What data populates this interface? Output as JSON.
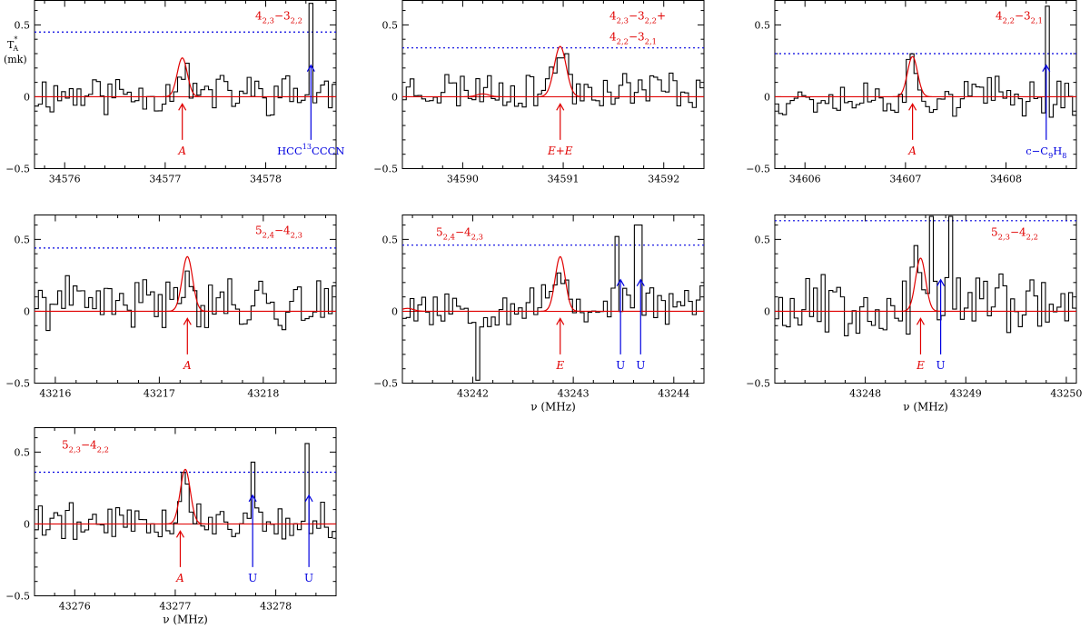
{
  "figure": {
    "ylabel_T": "T",
    "ylabel_star": "*",
    "ylabel_A": "A",
    "ylabel_unit": "(mk)",
    "xlabel": "ν (MHz)"
  },
  "colors": {
    "spectrum": "#000000",
    "model": "#e00000",
    "line_label": "#e00000",
    "other_label": "#0000e0",
    "noise": "#0000e0"
  },
  "chart_data": [
    {
      "type": "line",
      "panel": 1,
      "title": "4 2,3 − 3 2,2",
      "title_parts": [
        {
          "t": "4"
        },
        {
          "t": "2,3",
          "sub": true
        },
        {
          "t": "−3"
        },
        {
          "t": "2,2",
          "sub": true
        }
      ],
      "xlim": [
        34575.7,
        34578.7
      ],
      "ylim": [
        -0.5,
        0.67
      ],
      "xticks": [
        34576,
        34577,
        34578
      ],
      "xticklabels": [
        "34576",
        "34577",
        "34578"
      ],
      "yticks": [
        -0.5,
        0,
        0.5
      ],
      "yticklabels": [
        "−0.5",
        "0",
        "0.5"
      ],
      "xlabel": "",
      "noise_level": 0.45,
      "model": {
        "center": 34577.17,
        "amp": 0.27,
        "width": 0.05
      },
      "extra_models": [],
      "seed": 11,
      "amp": 0.13,
      "offset": 0.02,
      "spikes": [
        {
          "x": 34578.45,
          "y": 0.65
        }
      ],
      "arrows": [
        {
          "x": 34577.17,
          "color": "red",
          "label": "A",
          "italic": true,
          "y_top": -0.05
        },
        {
          "x": 34578.45,
          "color": "blue",
          "label": "",
          "y_top": 0.22,
          "rich": [
            {
              "t": "HCC"
            },
            {
              "t": "13",
              "sup": true
            },
            {
              "t": "CCCN"
            }
          ]
        }
      ]
    },
    {
      "type": "line",
      "panel": 2,
      "title": "4 2,3 − 3 2,2 + 4 2,2 − 3 2,1",
      "title_parts": [
        {
          "t": "4"
        },
        {
          "t": "2,3",
          "sub": true
        },
        {
          "t": "−3"
        },
        {
          "t": "2,2",
          "sub": true
        },
        {
          "t": "+"
        }
      ],
      "title_parts2": [
        {
          "t": "4"
        },
        {
          "t": "2,2",
          "sub": true
        },
        {
          "t": "−3"
        },
        {
          "t": "2,1",
          "sub": true
        }
      ],
      "xlim": [
        34589.4,
        34592.4
      ],
      "ylim": [
        -0.5,
        0.67
      ],
      "xticks": [
        34590,
        34591,
        34592
      ],
      "xticklabels": [
        "34590",
        "34591",
        "34592"
      ],
      "yticks": [
        -0.5,
        0,
        0.5
      ],
      "yticklabels": [
        "−0.5",
        "0",
        "0.5"
      ],
      "xlabel": "",
      "noise_level": 0.34,
      "model": {
        "center": 34590.97,
        "amp": 0.35,
        "width": 0.06
      },
      "extra_models": [
        {
          "center": 34590.2,
          "amp": 0.02,
          "width": 0.06
        }
      ],
      "seed": 23,
      "amp": 0.12,
      "offset": 0.05,
      "spikes": [],
      "arrows": [
        {
          "x": 34590.97,
          "color": "red",
          "label": "E+E",
          "italic": true,
          "y_top": -0.05
        }
      ]
    },
    {
      "type": "line",
      "panel": 3,
      "title": "4 2,2 − 3 2,1",
      "title_parts": [
        {
          "t": "4"
        },
        {
          "t": "2,2",
          "sub": true
        },
        {
          "t": "−3"
        },
        {
          "t": "2,1",
          "sub": true
        }
      ],
      "xlim": [
        34605.7,
        34608.7
      ],
      "ylim": [
        -0.5,
        0.67
      ],
      "xticks": [
        34606,
        34607,
        34608
      ],
      "xticklabels": [
        "34606",
        "34607",
        "34608"
      ],
      "yticks": [
        -0.5,
        0,
        0.5
      ],
      "yticklabels": [
        "−0.5",
        "0",
        "0.5"
      ],
      "xlabel": "",
      "noise_level": 0.3,
      "model": {
        "center": 34607.07,
        "amp": 0.28,
        "width": 0.05
      },
      "extra_models": [],
      "seed": 37,
      "amp": 0.12,
      "offset": 0.0,
      "spikes": [
        {
          "x": 34608.4,
          "y": 0.63
        }
      ],
      "arrows": [
        {
          "x": 34607.07,
          "color": "red",
          "label": "A",
          "italic": true,
          "y_top": -0.05
        },
        {
          "x": 34608.4,
          "color": "blue",
          "label": "",
          "y_top": 0.22,
          "rich": [
            {
              "t": "c−C"
            },
            {
              "t": "9",
              "sub": true
            },
            {
              "t": "H"
            },
            {
              "t": "8",
              "sub": true
            }
          ]
        }
      ]
    },
    {
      "type": "line",
      "panel": 4,
      "title": "5 2,4 − 4 2,3",
      "title_parts": [
        {
          "t": "5"
        },
        {
          "t": "2,4",
          "sub": true
        },
        {
          "t": "−4"
        },
        {
          "t": "2,3",
          "sub": true
        }
      ],
      "xlim": [
        43215.8,
        43218.7
      ],
      "ylim": [
        -0.5,
        0.67
      ],
      "xticks": [
        43216,
        43217,
        43218
      ],
      "xticklabels": [
        "43216",
        "43217",
        "43218"
      ],
      "yticks": [
        -0.5,
        0,
        0.5
      ],
      "yticklabels": [
        "−0.5",
        "0",
        "0.5"
      ],
      "xlabel": "",
      "noise_level": 0.44,
      "model": {
        "center": 43217.27,
        "amp": 0.38,
        "width": 0.05
      },
      "extra_models": [],
      "seed": 41,
      "amp": 0.16,
      "offset": 0.05,
      "spikes": [],
      "arrows": [
        {
          "x": 43217.27,
          "color": "red",
          "label": "A",
          "italic": true,
          "y_top": -0.05
        }
      ]
    },
    {
      "type": "line",
      "panel": 5,
      "title": "5 2,4 − 4 2,3",
      "title_parts": [
        {
          "t": "5"
        },
        {
          "t": "2,4",
          "sub": true
        },
        {
          "t": "−4"
        },
        {
          "t": "2,3",
          "sub": true
        }
      ],
      "xlim": [
        43241.3,
        43244.3
      ],
      "ylim": [
        -0.5,
        0.67
      ],
      "xticks": [
        43242,
        43243,
        43244
      ],
      "xticklabels": [
        "43242",
        "43243",
        "43244"
      ],
      "yticks": [
        -0.5,
        0,
        0.5
      ],
      "yticklabels": [
        "−0.5",
        "0",
        "0.5"
      ],
      "xlabel": "ν (MHz)",
      "noise_level": 0.46,
      "model": {
        "center": 43242.87,
        "amp": 0.38,
        "width": 0.05
      },
      "extra_models": [
        {
          "center": 43241.35,
          "amp": 0.02,
          "width": 0.06
        }
      ],
      "seed": 53,
      "amp": 0.14,
      "offset": 0.04,
      "spikes": [
        {
          "x": 43242.05,
          "y": -0.48
        },
        {
          "x": 43243.45,
          "y": 0.52
        },
        {
          "x": 43243.65,
          "y": 0.6
        }
      ],
      "arrows": [
        {
          "x": 43242.87,
          "color": "red",
          "label": "E",
          "italic": true,
          "y_top": -0.05
        },
        {
          "x": 43243.47,
          "color": "blue",
          "label": "U",
          "italic": false,
          "y_top": 0.22
        },
        {
          "x": 43243.67,
          "color": "blue",
          "label": "U",
          "italic": false,
          "y_top": 0.22
        }
      ]
    },
    {
      "type": "line",
      "panel": 6,
      "title": "5 2,3 − 4 2,2",
      "title_parts": [
        {
          "t": "5"
        },
        {
          "t": "2,3",
          "sub": true
        },
        {
          "t": "−4"
        },
        {
          "t": "2,2",
          "sub": true
        }
      ],
      "xlim": [
        43247.1,
        43250.1
      ],
      "ylim": [
        -0.5,
        0.67
      ],
      "xticks": [
        43248,
        43249,
        43250
      ],
      "xticklabels": [
        "43248",
        "43249",
        "43250"
      ],
      "yticks": [
        -0.5,
        0,
        0.5
      ],
      "yticklabels": [
        "−0.5",
        "0",
        "0.5"
      ],
      "xlabel": "ν (MHz)",
      "noise_level": 0.63,
      "model": {
        "center": 43248.55,
        "amp": 0.37,
        "width": 0.05
      },
      "extra_models": [],
      "seed": 67,
      "amp": 0.2,
      "offset": 0.06,
      "spikes": [
        {
          "x": 43248.65,
          "y": 0.66
        },
        {
          "x": 43248.85,
          "y": 0.66
        }
      ],
      "arrows": [
        {
          "x": 43248.55,
          "color": "red",
          "label": "E",
          "italic": true,
          "y_top": -0.05
        },
        {
          "x": 43248.75,
          "color": "blue",
          "label": "U",
          "italic": false,
          "y_top": 0.22
        }
      ]
    },
    {
      "type": "line",
      "panel": 7,
      "title": "5 2,3 − 4 2,2",
      "title_parts": [
        {
          "t": "5"
        },
        {
          "t": "2,3",
          "sub": true
        },
        {
          "t": "−4"
        },
        {
          "t": "2,2",
          "sub": true
        }
      ],
      "xlim": [
        43275.6,
        43278.6
      ],
      "ylim": [
        -0.5,
        0.67
      ],
      "xticks": [
        43276,
        43277,
        43278
      ],
      "xticklabels": [
        "43276",
        "43277",
        "43278"
      ],
      "yticks": [
        -0.5,
        0,
        0.5
      ],
      "yticklabels": [
        "−0.5",
        "0",
        "0.5"
      ],
      "xlabel": "ν (MHz)",
      "noise_level": 0.36,
      "model": {
        "center": 43277.1,
        "amp": 0.38,
        "width": 0.05
      },
      "extra_models": [],
      "seed": 79,
      "amp": 0.12,
      "offset": 0.02,
      "spikes": [
        {
          "x": 43277.78,
          "y": 0.43
        },
        {
          "x": 43278.3,
          "y": 0.56
        }
      ],
      "arrows": [
        {
          "x": 43277.05,
          "color": "red",
          "label": "A",
          "italic": true,
          "y_top": -0.05
        },
        {
          "x": 43277.77,
          "color": "blue",
          "label": "U",
          "italic": false,
          "y_top": 0.2
        },
        {
          "x": 43278.33,
          "color": "blue",
          "label": "U",
          "italic": false,
          "y_top": 0.2
        }
      ]
    }
  ]
}
